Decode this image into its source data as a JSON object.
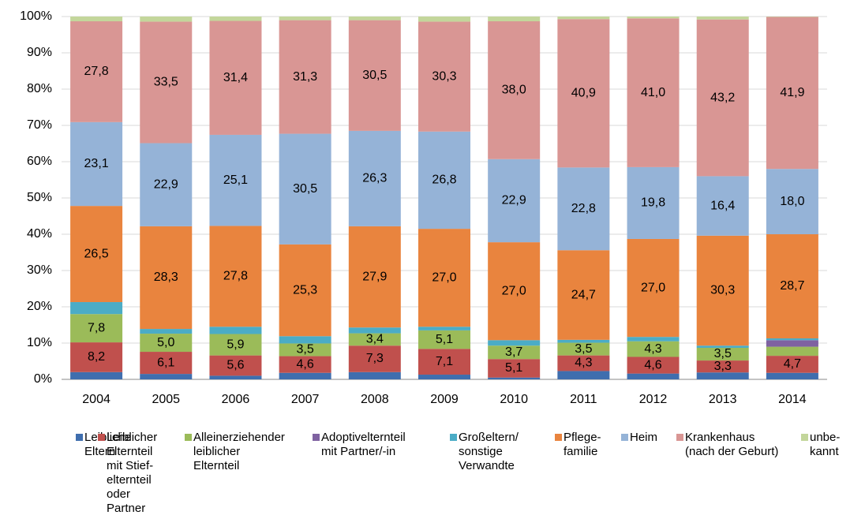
{
  "chart_data": {
    "type": "stacked-bar-100",
    "categories": [
      "2004",
      "2005",
      "2006",
      "2007",
      "2008",
      "2009",
      "2010",
      "2011",
      "2012",
      "2013",
      "2014"
    ],
    "ylim": [
      0,
      100
    ],
    "yticks": [
      {
        "value": 0,
        "label": "0%"
      },
      {
        "value": 10,
        "label": "10%"
      },
      {
        "value": 20,
        "label": "20%"
      },
      {
        "value": 30,
        "label": "30%"
      },
      {
        "value": 40,
        "label": "40%"
      },
      {
        "value": 50,
        "label": "50%"
      },
      {
        "value": 60,
        "label": "60%"
      },
      {
        "value": 70,
        "label": "70%"
      },
      {
        "value": 80,
        "label": "80%"
      },
      {
        "value": 90,
        "label": "90%"
      },
      {
        "value": 100,
        "label": "100%"
      }
    ],
    "grid": true,
    "series": [
      {
        "name": "Leibliche\nEltern",
        "color": "#3f6eae",
        "values": [
          2.0,
          1.5,
          1.0,
          1.8,
          2.0,
          1.3,
          0.5,
          2.3,
          1.6,
          1.9,
          1.8
        ]
      },
      {
        "name": "Leiblicher\nElternteil\nmit Stief-\nelternteil\noder\nPartner",
        "color": "#c0504d",
        "values": [
          8.2,
          6.1,
          5.6,
          4.6,
          7.3,
          7.1,
          5.1,
          4.3,
          4.6,
          3.3,
          4.7
        ],
        "value_labels": [
          "8,2",
          "6,1",
          "5,6",
          "4,6",
          "7,3",
          "7,1",
          "5,1",
          "4,3",
          "4,6",
          "3,3",
          "4,7"
        ]
      },
      {
        "name": "Alleinerziehender\nleiblicher\nElternteil",
        "color": "#9bbb59",
        "values": [
          7.8,
          5.0,
          5.9,
          3.5,
          3.4,
          5.1,
          3.7,
          3.5,
          4.3,
          3.5,
          2.5
        ],
        "value_labels": [
          "7,8",
          "5,0",
          "5,9",
          "3,5",
          "3,4",
          "5,1",
          "3,7",
          "3,5",
          "4,3",
          "3,5",
          null
        ]
      },
      {
        "name": "Adoptivelternteil\nmit Partner/-in",
        "color": "#7f62a1",
        "values": [
          0,
          0,
          0,
          0,
          0,
          0,
          0,
          0,
          0,
          0,
          1.8
        ]
      },
      {
        "name": "Großeltern/\nsonstige\nVerwandte",
        "color": "#4bacc6",
        "values": [
          3.3,
          1.3,
          2.0,
          2.0,
          1.6,
          1.0,
          1.5,
          0.8,
          1.2,
          0.6,
          0.5
        ]
      },
      {
        "name": "Pflege-\nfamilie",
        "color": "#e9843e",
        "values": [
          26.5,
          28.3,
          27.8,
          25.3,
          27.9,
          27.0,
          27.0,
          24.7,
          27.0,
          30.3,
          28.7
        ],
        "value_labels": [
          "26,5",
          "28,3",
          "27,8",
          "25,3",
          "27,9",
          "27,0",
          "27,0",
          "24,7",
          "27,0",
          "30,3",
          "28,7"
        ]
      },
      {
        "name": "Heim",
        "color": "#95b3d7",
        "values": [
          23.1,
          22.9,
          25.1,
          30.5,
          26.3,
          26.8,
          22.9,
          22.8,
          19.8,
          16.4,
          18.0
        ],
        "value_labels": [
          "23,1",
          "22,9",
          "25,1",
          "30,5",
          "26,3",
          "26,8",
          "22,9",
          "22,8",
          "19,8",
          "16,4",
          "18,0"
        ]
      },
      {
        "name": "Krankenhaus\n(nach der Geburt)",
        "color": "#d99694",
        "values": [
          27.8,
          33.5,
          31.4,
          31.3,
          30.5,
          30.3,
          38.0,
          40.9,
          41.0,
          43.2,
          41.9
        ],
        "value_labels": [
          "27,8",
          "33,5",
          "31,4",
          "31,3",
          "30,5",
          "30,3",
          "38,0",
          "40,9",
          "41,0",
          "43,2",
          "41,9"
        ]
      },
      {
        "name": "unbe-\nkannt",
        "color": "#c3d69b",
        "values": [
          1.3,
          1.4,
          1.2,
          1.0,
          1.0,
          1.4,
          1.3,
          0.7,
          0.5,
          0.8,
          0.1
        ]
      }
    ]
  }
}
